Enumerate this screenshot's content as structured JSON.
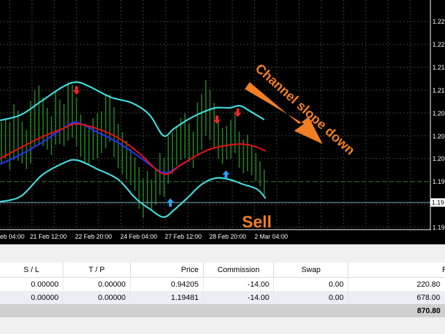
{
  "chart": {
    "price_ticks": [
      "1.22",
      "1.22",
      "1.21",
      "1.21",
      "1.20",
      "1.20",
      "1.20",
      "1.19",
      "1.19",
      "1.19"
    ],
    "current_price": "1.19",
    "time_ticks": [
      "eb 04:00",
      "21 Feb 12:00",
      "22 Feb 20:00",
      "24 Feb 04:00",
      "27 Feb 12:00",
      "28 Feb 20:00",
      "2 Mar 04:00"
    ],
    "annotations": {
      "channel_text": "Channel slope down",
      "sell_text": "Sell"
    },
    "colors": {
      "upper_band": "#40e0e0",
      "lower_band": "#40e0e0",
      "mid_red": "#dd1111",
      "mid_blue": "#2233ee",
      "candles": "#33cc33",
      "down_arrow": "#ff2222",
      "up_arrow": "#22aaff",
      "annotation": "#f07e26",
      "grid": "#3a4a3a"
    }
  },
  "terminal": {
    "headers": [
      "S / L",
      "T / P",
      "Price",
      "Commission",
      "Swap",
      "Pro"
    ],
    "rows": [
      [
        "0.00000",
        "0.00000",
        "0.94205",
        "-14.00",
        "0.00",
        "220.80"
      ],
      [
        "0.00000",
        "0.00000",
        "1.19481",
        "-14.00",
        "0.00",
        "678.00"
      ]
    ],
    "total": "870.80"
  }
}
